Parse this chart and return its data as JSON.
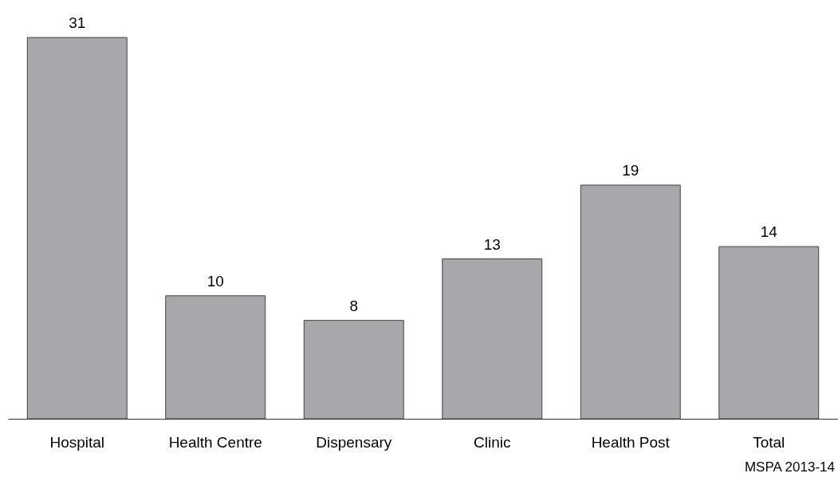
{
  "chart_data": {
    "type": "bar",
    "categories": [
      "Hospital",
      "Health Centre",
      "Dispensary",
      "Clinic",
      "Health Post",
      "Total"
    ],
    "values": [
      31,
      10,
      8,
      13,
      19,
      14
    ],
    "color": "#a7a8ac",
    "data_labels": true,
    "annotations": [
      "MSPA 2013-14"
    ]
  }
}
